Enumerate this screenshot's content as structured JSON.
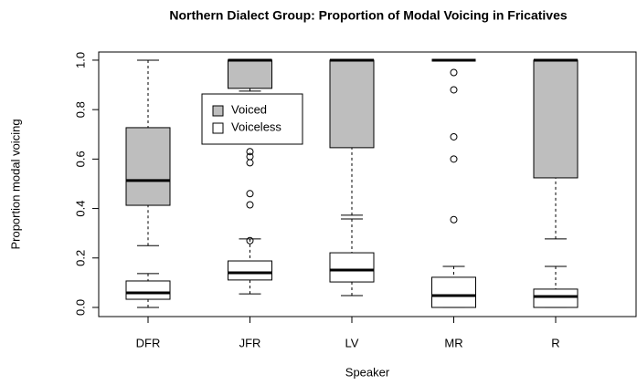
{
  "chart_data": {
    "type": "boxplot",
    "title": "Northern Dialect Group: Proportion of Modal Voicing in Fricatives",
    "x_label": "Speaker",
    "y_label": "Proportion modal voicing",
    "categories": [
      "DFR",
      "JFR",
      "LV",
      "MR",
      "R"
    ],
    "ylim": [
      -0.037,
      1.033
    ],
    "yticks": [
      {
        "value": 0,
        "label": "0.0"
      },
      0.2,
      0.4,
      0.6,
      0.8,
      {
        "value": 1,
        "label": "1.0"
      }
    ],
    "legend": "top-left",
    "series": [
      {
        "name": "Voiced",
        "color": "#bebebe",
        "boxes": [
          {
            "whisker_low": 0.25,
            "q1": 0.413,
            "median": 0.513,
            "q3": 0.727,
            "whisker_high": 1.0,
            "outliers": []
          },
          {
            "whisker_low": 0.875,
            "q1": 0.886,
            "median": 1.0,
            "q3": 1.0,
            "whisker_high": 1.0,
            "outliers": [
              0.63,
              0.61,
              0.585,
              0.46,
              0.415,
              0.27
            ]
          },
          {
            "whisker_low": 0.373,
            "q1": 0.646,
            "median": 1.0,
            "q3": 1.0,
            "whisker_high": 1.0,
            "outliers": []
          },
          {
            "whisker_low": 1.0,
            "q1": 1.0,
            "median": 1.0,
            "q3": 1.0,
            "whisker_high": 1.0,
            "outliers": [
              0.95,
              0.88,
              0.69,
              0.6,
              0.355
            ]
          },
          {
            "whisker_low": 0.277,
            "q1": 0.524,
            "median": 1.0,
            "q3": 1.0,
            "whisker_high": 1.0,
            "outliers": []
          }
        ]
      },
      {
        "name": "Voiceless",
        "color": "#ffffff",
        "boxes": [
          {
            "whisker_low": 0.0,
            "q1": 0.033,
            "median": 0.059,
            "q3": 0.107,
            "whisker_high": 0.137,
            "outliers": []
          },
          {
            "whisker_low": 0.055,
            "q1": 0.111,
            "median": 0.14,
            "q3": 0.188,
            "whisker_high": 0.277,
            "outliers": []
          },
          {
            "whisker_low": 0.048,
            "q1": 0.103,
            "median": 0.151,
            "q3": 0.221,
            "whisker_high": 0.358,
            "outliers": []
          },
          {
            "whisker_low": 0.0,
            "q1": 0.0,
            "median": 0.048,
            "q3": 0.122,
            "whisker_high": 0.166,
            "outliers": []
          },
          {
            "whisker_low": 0.0,
            "q1": 0.0,
            "median": 0.044,
            "q3": 0.074,
            "whisker_high": 0.166,
            "outliers": []
          }
        ]
      }
    ]
  }
}
